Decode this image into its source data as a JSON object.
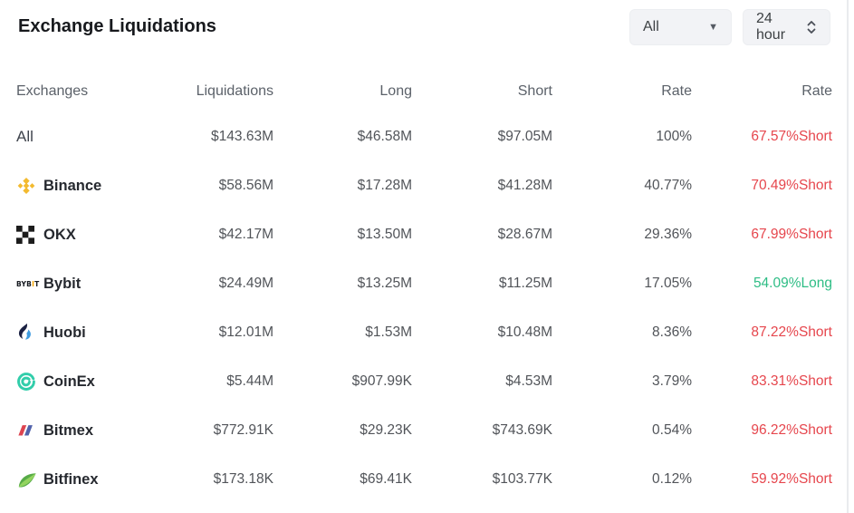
{
  "header": {
    "title": "Exchange Liquidations"
  },
  "filters": {
    "scope": {
      "value": "All",
      "icon": "caret-down-icon"
    },
    "period": {
      "value": "24 hour",
      "icon": "up-down-chevrons-icon"
    }
  },
  "table": {
    "columns": [
      "Exchanges",
      "Liquidations",
      "Long",
      "Short",
      "Rate",
      "Rate"
    ],
    "rows": [
      {
        "exchange": "All",
        "icon": "none",
        "liquidations": "$143.63M",
        "long": "$46.58M",
        "short": "$97.05M",
        "rate": "100%",
        "dominance": "67.57%Short",
        "side": "short"
      },
      {
        "exchange": "Binance",
        "icon": "binance-icon",
        "liquidations": "$58.56M",
        "long": "$17.28M",
        "short": "$41.28M",
        "rate": "40.77%",
        "dominance": "70.49%Short",
        "side": "short"
      },
      {
        "exchange": "OKX",
        "icon": "okx-icon",
        "liquidations": "$42.17M",
        "long": "$13.50M",
        "short": "$28.67M",
        "rate": "29.36%",
        "dominance": "67.99%Short",
        "side": "short"
      },
      {
        "exchange": "Bybit",
        "icon": "bybit-icon",
        "liquidations": "$24.49M",
        "long": "$13.25M",
        "short": "$11.25M",
        "rate": "17.05%",
        "dominance": "54.09%Long",
        "side": "long"
      },
      {
        "exchange": "Huobi",
        "icon": "huobi-icon",
        "liquidations": "$12.01M",
        "long": "$1.53M",
        "short": "$10.48M",
        "rate": "8.36%",
        "dominance": "87.22%Short",
        "side": "short"
      },
      {
        "exchange": "CoinEx",
        "icon": "coinex-icon",
        "liquidations": "$5.44M",
        "long": "$907.99K",
        "short": "$4.53M",
        "rate": "3.79%",
        "dominance": "83.31%Short",
        "side": "short"
      },
      {
        "exchange": "Bitmex",
        "icon": "bitmex-icon",
        "liquidations": "$772.91K",
        "long": "$29.23K",
        "short": "$743.69K",
        "rate": "0.54%",
        "dominance": "96.22%Short",
        "side": "short"
      },
      {
        "exchange": "Bitfinex",
        "icon": "bitfinex-icon",
        "liquidations": "$173.18K",
        "long": "$69.41K",
        "short": "$103.77K",
        "rate": "0.12%",
        "dominance": "59.92%Short",
        "side": "short"
      }
    ]
  },
  "colors": {
    "short": "#e6464d",
    "long": "#2ebd85",
    "binance": "#f3ba2f",
    "bybit_accent": "#f7a600",
    "huobi_dark": "#1b2143",
    "huobi_light": "#3f9be0",
    "coinex": "#31cdaa",
    "bitmex_red": "#dd4450",
    "bitmex_blue": "#5162ab",
    "bitfinex_dark": "#57ab48",
    "bitfinex_light": "#93d45f"
  }
}
